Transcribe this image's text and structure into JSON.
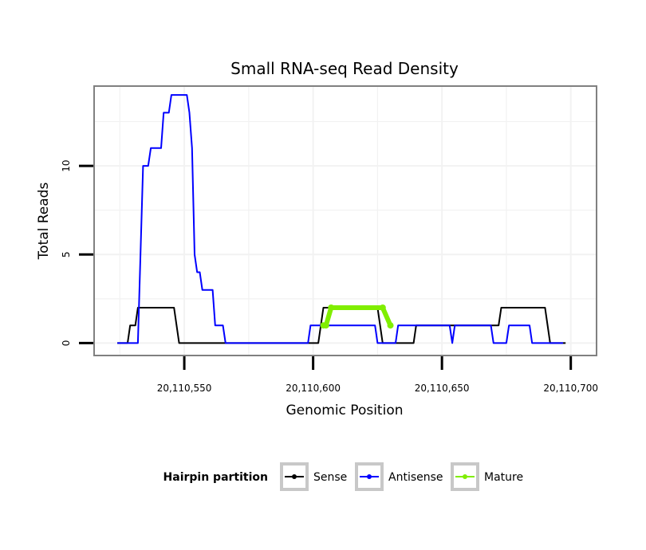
{
  "chart_data": {
    "type": "line",
    "title": "Small RNA-seq Read Density",
    "xlabel": "Genomic Position",
    "ylabel": "Total Reads",
    "xlim": [
      20110515,
      20110710
    ],
    "ylim": [
      -0.7,
      14.5
    ],
    "x_ticks": [
      20110550,
      20110600,
      20110650,
      20110700
    ],
    "x_tick_labels": [
      "20,110,550",
      "20,110,600",
      "20,110,650",
      "20,110,700"
    ],
    "y_ticks": [
      0,
      5,
      10
    ],
    "y_tick_labels": [
      "0",
      "5",
      "10"
    ],
    "grid": true,
    "legend": {
      "title": "Hairpin partition",
      "position": "bottom",
      "entries": [
        "Sense",
        "Antisense",
        "Mature"
      ]
    },
    "series": [
      {
        "name": "Sense",
        "color": "#000000",
        "points": [
          [
            20110524,
            0
          ],
          [
            20110528,
            0
          ],
          [
            20110529,
            1
          ],
          [
            20110531,
            1
          ],
          [
            20110532,
            2
          ],
          [
            20110546,
            2
          ],
          [
            20110547,
            1
          ],
          [
            20110548,
            0
          ],
          [
            20110602,
            0
          ],
          [
            20110603,
            1
          ],
          [
            20110604,
            2
          ],
          [
            20110625,
            2
          ],
          [
            20110626,
            1
          ],
          [
            20110627,
            0
          ],
          [
            20110639,
            0
          ],
          [
            20110640,
            1
          ],
          [
            20110672,
            1
          ],
          [
            20110673,
            2
          ],
          [
            20110690,
            2
          ],
          [
            20110691,
            1
          ],
          [
            20110692,
            0
          ],
          [
            20110698,
            0
          ]
        ]
      },
      {
        "name": "Antisense",
        "color": "#0000ff",
        "points": [
          [
            20110524,
            0
          ],
          [
            20110532,
            0
          ],
          [
            20110534,
            10
          ],
          [
            20110536,
            10
          ],
          [
            20110537,
            11
          ],
          [
            20110541,
            11
          ],
          [
            20110542,
            13
          ],
          [
            20110544,
            13
          ],
          [
            20110545,
            14
          ],
          [
            20110551,
            14
          ],
          [
            20110552,
            13
          ],
          [
            20110553,
            11
          ],
          [
            20110554,
            5
          ],
          [
            20110555,
            4
          ],
          [
            20110556,
            4
          ],
          [
            20110557,
            3
          ],
          [
            20110561,
            3
          ],
          [
            20110562,
            1
          ],
          [
            20110565,
            1
          ],
          [
            20110566,
            0
          ],
          [
            20110598,
            0
          ],
          [
            20110599,
            1
          ],
          [
            20110624,
            1
          ],
          [
            20110625,
            0
          ],
          [
            20110632,
            0
          ],
          [
            20110633,
            1
          ],
          [
            20110653,
            1
          ],
          [
            20110654,
            0
          ],
          [
            20110655,
            1
          ],
          [
            20110669,
            1
          ],
          [
            20110670,
            0
          ],
          [
            20110675,
            0
          ],
          [
            20110676,
            1
          ],
          [
            20110684,
            1
          ],
          [
            20110685,
            0
          ],
          [
            20110697,
            0
          ]
        ]
      },
      {
        "name": "Mature",
        "color": "#80ee00",
        "points": [
          [
            20110604,
            1
          ],
          [
            20110605,
            1
          ],
          [
            20110607,
            2
          ],
          [
            20110627,
            2
          ],
          [
            20110630,
            1
          ]
        ]
      }
    ]
  }
}
